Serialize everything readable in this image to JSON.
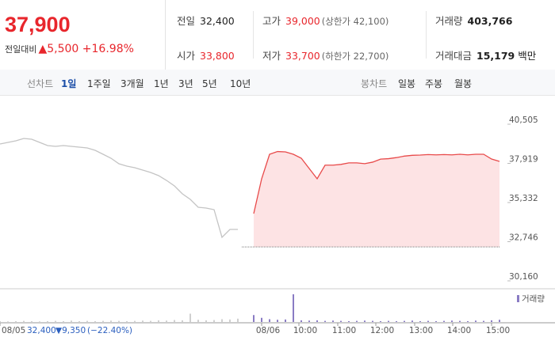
{
  "header": {
    "price": "37,900",
    "change_label": "전일대비",
    "change": "▲5,500",
    "change_rate": "+16.98%",
    "stats": [
      {
        "label": "전일",
        "value": "32,400"
      },
      {
        "label": "고가",
        "value": "39,000",
        "note": "(상한가 42,100)"
      },
      {
        "label": "거래량",
        "value": "403,766"
      },
      {
        "label": "시가",
        "value": "33,800"
      },
      {
        "label": "저가",
        "value": "33,700",
        "note": "(하한가 22,700)"
      },
      {
        "label": "거래대금",
        "value": "15,179",
        "unit": "백만"
      }
    ]
  },
  "tabs": {
    "line_label": "선차트",
    "line": [
      "1일",
      "1주일",
      "3개월",
      "1년",
      "3년",
      "5년",
      "10년"
    ],
    "candle_label": "봉차트",
    "candle": [
      "일봉",
      "주봉",
      "월봉"
    ]
  },
  "chart_data": {
    "type": "line",
    "series": [
      {
        "color": "#c4c4c4",
        "values": [
          39199,
          39303,
          39408,
          39565,
          39512,
          39303,
          39094,
          39042,
          39094,
          39042,
          38990,
          38937,
          38781,
          38520,
          38258,
          37893,
          37736,
          37632,
          37475,
          37318,
          37109,
          36795,
          36430,
          35907,
          35541,
          35019,
          34967,
          34862,
          33034,
          33556,
          33556,
          null,
          null,
          null,
          null,
          null,
          null,
          null,
          null,
          null,
          null,
          null,
          null,
          null,
          null,
          null,
          null,
          null,
          null,
          null,
          null,
          null,
          null,
          null,
          null,
          null,
          null,
          null,
          null,
          null,
          null,
          null,
          null,
          null
        ]
      },
      {
        "color": "#e84a4a",
        "values": [
          null,
          null,
          null,
          null,
          null,
          null,
          null,
          null,
          null,
          null,
          null,
          null,
          null,
          null,
          null,
          null,
          null,
          null,
          null,
          null,
          null,
          null,
          null,
          null,
          null,
          null,
          null,
          null,
          null,
          null,
          null,
          null,
          34601,
          36900,
          38520,
          38700,
          38677,
          38520,
          38258,
          37580,
          36900,
          37800,
          37800,
          37850,
          37950,
          37950,
          37900,
          38000,
          38200,
          38230,
          38300,
          38400,
          38450,
          38467,
          38500,
          38480,
          38500,
          38480,
          38520,
          38480,
          38520,
          38520,
          38206,
          38049
        ]
      }
    ],
    "baseline": 32400,
    "xlim": [
      0,
      64
    ],
    "xticks": [
      {
        "value": 0,
        "label": "08/05"
      },
      {
        "value": 33,
        "label": "08/06"
      },
      {
        "value": 37.7,
        "label": "10:00"
      },
      {
        "value": 42.6,
        "label": "11:00"
      },
      {
        "value": 47.4,
        "label": "12:00"
      },
      {
        "value": 52.3,
        "label": "13:00"
      },
      {
        "value": 57.1,
        "label": "14:00"
      },
      {
        "value": 62,
        "label": "15:00"
      }
    ],
    "ylim": [
      29794,
      40871
    ],
    "yticks": [
      {
        "value": 40505,
        "label": "40,505"
      },
      {
        "value": 37919,
        "label": "37,919"
      },
      {
        "value": 35332,
        "label": "35,332"
      },
      {
        "value": 32746,
        "label": "32,746"
      },
      {
        "value": 30160,
        "label": "30,160"
      }
    ],
    "volume": {
      "name": "거래량",
      "color": "#8a7cc4",
      "ylim": [
        0,
        100
      ],
      "values": [
        3,
        2,
        3,
        4,
        3,
        2,
        3,
        4,
        3,
        5,
        3,
        4,
        3,
        4,
        5,
        4,
        3,
        4,
        5,
        4,
        6,
        5,
        7,
        6,
        30,
        8,
        6,
        7,
        10,
        9,
        12,
        0,
        25,
        15,
        10,
        8,
        9,
        100,
        6,
        5,
        6,
        4,
        5,
        4,
        3,
        4,
        5,
        4,
        3,
        4,
        3,
        4,
        5,
        3,
        4,
        3,
        4,
        5,
        4,
        3,
        5,
        4,
        6,
        8
      ]
    },
    "footer": {
      "date": "08/05",
      "close": "32,400",
      "change": "▼9,350",
      "rate": "(−22.40%)"
    }
  }
}
